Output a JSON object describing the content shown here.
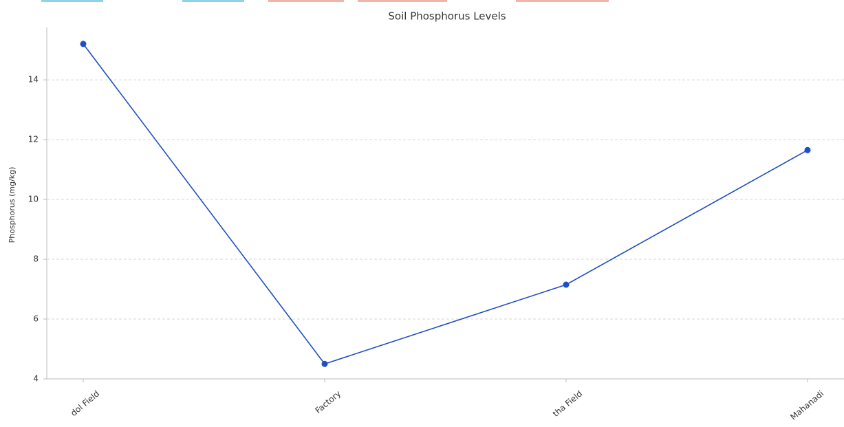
{
  "chart_data": {
    "type": "line",
    "title": "Soil Phosphorus Levels",
    "y_label": "Phosphorus (mg/kg)",
    "categories": [
      "dol Field",
      "Factory",
      "tha Field",
      "Mahanadi"
    ],
    "series": [
      {
        "name": "Phosphorus",
        "color": "#1f4fc4",
        "values": [
          15.2,
          4.5,
          7.15,
          11.65
        ]
      }
    ],
    "ylim": [
      4,
      15.75
    ],
    "yticks": [
      4,
      6,
      8,
      10,
      12,
      14
    ],
    "grid": true
  }
}
